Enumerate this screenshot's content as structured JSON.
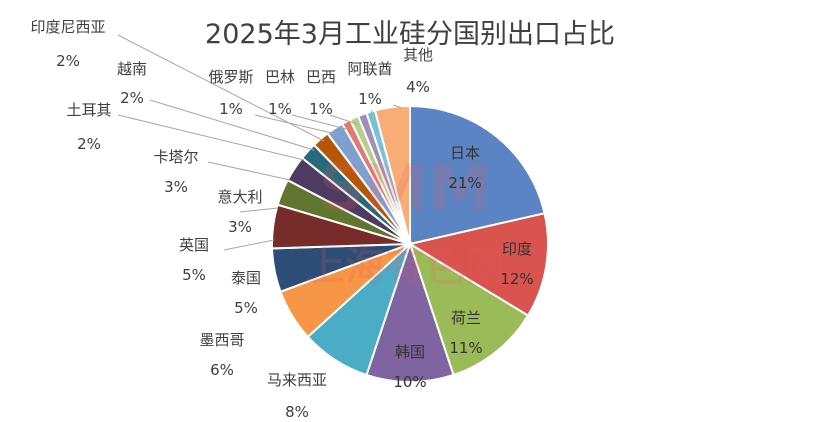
{
  "chart_data": {
    "type": "pie",
    "title": "2025年3月工业硅分国别出口占比",
    "slices": [
      {
        "name": "日本",
        "value": 21,
        "label": "21%",
        "color": "#5b84c4"
      },
      {
        "name": "印度",
        "value": 12,
        "label": "12%",
        "color": "#d9534f"
      },
      {
        "name": "荷兰",
        "value": 11,
        "label": "11%",
        "color": "#9bbb59"
      },
      {
        "name": "韩国",
        "value": 10,
        "label": "10%",
        "color": "#8064a2"
      },
      {
        "name": "马来西亚",
        "value": 8,
        "label": "8%",
        "color": "#4bacc6"
      },
      {
        "name": "墨西哥",
        "value": 6,
        "label": "6%",
        "color": "#f79646"
      },
      {
        "name": "泰国",
        "value": 5,
        "label": "5%",
        "color": "#2c4d75"
      },
      {
        "name": "英国",
        "value": 5,
        "label": "5%",
        "color": "#772c2a"
      },
      {
        "name": "意大利",
        "value": 3,
        "label": "3%",
        "color": "#5f7530"
      },
      {
        "name": "卡塔尔",
        "value": 3,
        "label": "3%",
        "color": "#4d3b62"
      },
      {
        "name": "土耳其",
        "value": 2,
        "label": "2%",
        "color": "#276a7c"
      },
      {
        "name": "越南",
        "value": 2,
        "label": "2%",
        "color": "#b65708"
      },
      {
        "name": "印度尼西亚",
        "value": 2,
        "label": "2%",
        "color": "#7f9fcf"
      },
      {
        "name": "俄罗斯",
        "value": 1,
        "label": "1%",
        "color": "#e07a77"
      },
      {
        "name": "巴林",
        "value": 1,
        "label": "1%",
        "color": "#b7cf86"
      },
      {
        "name": "巴西",
        "value": 1,
        "label": "1%",
        "color": "#a08fbd"
      },
      {
        "name": "阿联酋",
        "value": 1,
        "label": "1%",
        "color": "#74c3d7"
      },
      {
        "name": "其他",
        "value": 4,
        "label": "4%",
        "color": "#f9ad76"
      }
    ]
  },
  "watermark": {
    "top": "SMM",
    "bottom": "上海有色网"
  }
}
